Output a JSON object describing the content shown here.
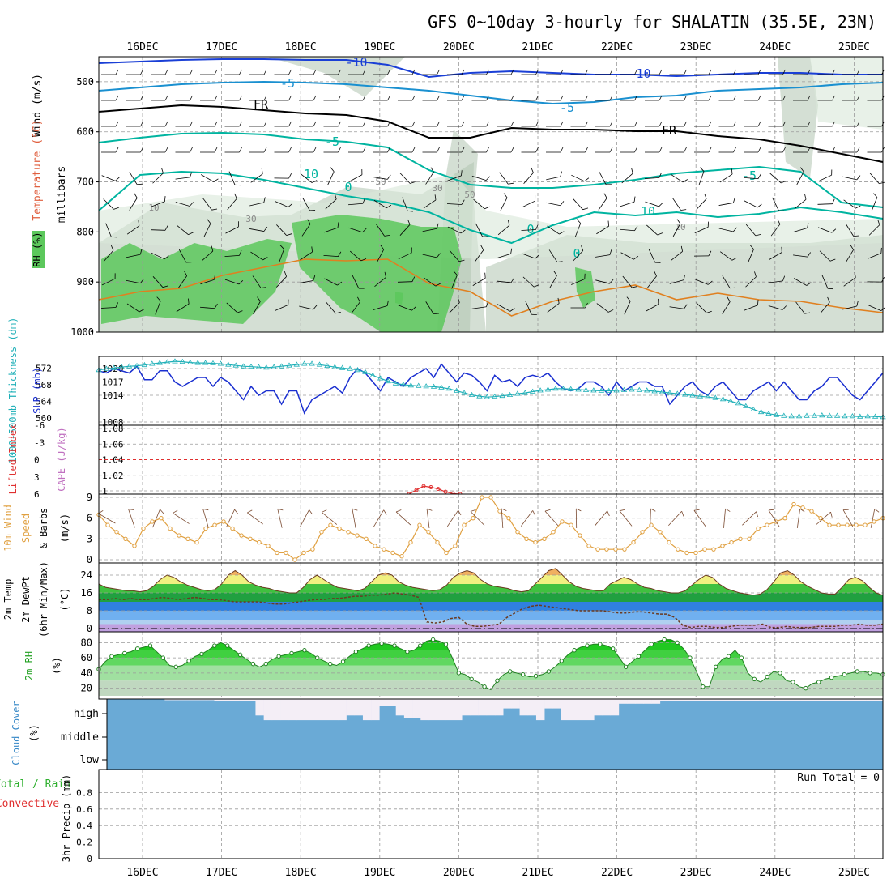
{
  "title": "GFS 0~10day 3-hourly for SHALATIN (35.5E, 23N)",
  "date_labels": [
    "16DEC",
    "17DEC",
    "18DEC",
    "19DEC",
    "20DEC",
    "21DEC",
    "22DEC",
    "23DEC",
    "24DEC",
    "25DEC"
  ],
  "colors": {
    "frame": "#000000",
    "grid": "#9a9a9a",
    "rh_green": "#5cc85c",
    "rh_gray": "#b0c4b0",
    "temp_cyan": "#00b4a0",
    "temp_blue": "#1a3fd6",
    "temp_sky": "#1a90d0",
    "temp_orange": "#e08020",
    "slp_blue": "#1a2fd0",
    "thick_cyan": "#20b0b8",
    "cape_red": "#e03030",
    "wind_orange": "#e0a040",
    "cloud_blue": "#6aaad6",
    "cloud_white": "#f4eef6"
  },
  "chart_data": [
    {
      "name": "upper_air_cross_section",
      "type": "heatmap",
      "ylabel_parts": [
        "Wind",
        "(m/s)",
        "Temperature",
        "(°C)",
        "RH",
        "(%)"
      ],
      "ylabel_unit": "millibars",
      "y_ticks": [
        500,
        600,
        700,
        800,
        900,
        1000
      ],
      "ylim": [
        450,
        1000
      ],
      "contour_labels": [
        "-10",
        "-10",
        "-5",
        "-5",
        "FR",
        "FR",
        "-5",
        "-5",
        "10",
        "10",
        "0",
        "0",
        "0",
        "10",
        "30",
        "30",
        "50",
        "50",
        "10"
      ],
      "freezing_level_mb_daily": [
        550,
        545,
        548,
        556,
        560,
        595,
        590,
        592,
        620,
        640
      ],
      "temp_10c_line_mb_daily": [
        690,
        690,
        700,
        710,
        680,
        760,
        770,
        750,
        730,
        700
      ]
    },
    {
      "name": "slp_thickness",
      "type": "line",
      "ylabel_left": "1000-500mb Thickness (dm)",
      "ylabel_right": "SLP (mb)",
      "left_ticks": [
        560,
        564,
        568,
        572
      ],
      "right_ticks": [
        1008,
        1014,
        1017,
        1020
      ],
      "series": [
        {
          "name": "SLP (mb)",
          "values": [
            1019.5,
            1019,
            1020,
            1019.5,
            1019,
            1020.5,
            1017.5,
            1017.5,
            1019.5,
            1019.5,
            1017,
            1016,
            1017,
            1018,
            1018,
            1016,
            1018,
            1017,
            1015,
            1013,
            1016,
            1014,
            1015,
            1015,
            1012,
            1015,
            1015,
            1010,
            1013,
            1014,
            1015,
            1016,
            1014.5,
            1018,
            1020,
            1019,
            1017,
            1015,
            1018,
            1017,
            1016,
            1018,
            1019,
            1020,
            1018,
            1021,
            1019,
            1017,
            1019,
            1018.5,
            1017,
            1015,
            1018.5,
            1017,
            1017.5,
            1016,
            1018,
            1018.5,
            1018,
            1019,
            1017,
            1015.5,
            1015,
            1015.5,
            1017,
            1017,
            1016,
            1014,
            1017,
            1015,
            1016,
            1017,
            1017,
            1016,
            1016,
            1012,
            1014,
            1016,
            1017,
            1015,
            1014,
            1016,
            1017,
            1015,
            1013,
            1013,
            1015,
            1016,
            1017,
            1015,
            1017,
            1015,
            1013,
            1013,
            1015,
            1016,
            1018,
            1018,
            1016,
            1014,
            1013,
            1015,
            1017,
            1019
          ]
        },
        {
          "name": "Thickness (dm)",
          "values": [
            571.5,
            571.8,
            572,
            572.2,
            572.4,
            572.5,
            572.7,
            573,
            573.2,
            573.4,
            573.6,
            573.5,
            573.3,
            573.2,
            573.2,
            573.1,
            573,
            572.8,
            572.6,
            572.4,
            572.3,
            572.2,
            572.1,
            572.2,
            572.4,
            572.6,
            572.8,
            573,
            573,
            572.8,
            572.5,
            572.2,
            572,
            571.8,
            571.5,
            571,
            570.2,
            569.5,
            568.8,
            568.3,
            568,
            567.8,
            567.7,
            567.6,
            567.5,
            567.3,
            567,
            566.5,
            566,
            565.5,
            565.2,
            565,
            565.1,
            565.3,
            565.5,
            565.8,
            566,
            566.3,
            566.6,
            566.8,
            567,
            567,
            566.9,
            566.8,
            566.7,
            566.6,
            566.5,
            566.5,
            566.6,
            566.7,
            566.8,
            566.7,
            566.6,
            566.4,
            566.2,
            566,
            565.8,
            565.6,
            565.4,
            565.2,
            565,
            564.8,
            564.5,
            564,
            563.5,
            562.8,
            562,
            561.4,
            561,
            560.7,
            560.5,
            560.4,
            560.4,
            560.5,
            560.5,
            560.6,
            560.5,
            560.5,
            560.4,
            560.4,
            560.3,
            560.4,
            560.3,
            560.2
          ]
        }
      ]
    },
    {
      "name": "lifted_index_cape",
      "type": "line",
      "ylabel_left": "Lifted Index",
      "ylabel_right": "CAPE (J/kg)",
      "left_ticks": [
        6,
        3,
        0,
        -3,
        -6
      ],
      "right_ticks": [
        1,
        1.02,
        1.04,
        1.06,
        1.08
      ],
      "reference_line_value": 0,
      "series": [
        {
          "name": "Lifted Index",
          "values": [
            6,
            5.3,
            4.6,
            4.8,
            5.1,
            5.6,
            5.9,
            6
          ]
        },
        {
          "name": "CAPE",
          "values": []
        }
      ]
    },
    {
      "name": "wind_10m",
      "type": "line",
      "ylabel": "10m Wind Speed & Barbs (m/s)",
      "ylim": [
        0,
        9
      ],
      "y_ticks": [
        0,
        3,
        6,
        9
      ],
      "series": [
        {
          "name": "10m Wind Speed (m/s)",
          "values": [
            6.5,
            5,
            4,
            3,
            2,
            4.5,
            5.5,
            6,
            4.5,
            3.5,
            3,
            2.5,
            4.5,
            5,
            5.5,
            4.5,
            3.5,
            3,
            2.5,
            2,
            1,
            1,
            0,
            1,
            1.5,
            4,
            5,
            4.5,
            4,
            3.5,
            3,
            2,
            1.5,
            1,
            0.5,
            2.5,
            5,
            4,
            2.5,
            1,
            2,
            5,
            6,
            9,
            9,
            7,
            6,
            4,
            3,
            2.5,
            3,
            4,
            5.5,
            5,
            3.5,
            2,
            1.5,
            1.5,
            1.5,
            1.5,
            2.5,
            4,
            5,
            4,
            2.5,
            1.5,
            1,
            1,
            1.5,
            1.5,
            2,
            2.5,
            3,
            3,
            4.5,
            5,
            5.5,
            6,
            8,
            7.5,
            7,
            6,
            5,
            5,
            5,
            5,
            5,
            5.5,
            6
          ]
        }
      ]
    },
    {
      "name": "temp_2m",
      "type": "area",
      "ylabel": "2m Temp / 2m DewPt (6hr Min/Max) (°C)",
      "ylim": [
        0,
        28
      ],
      "y_ticks": [
        0,
        8,
        16,
        24
      ],
      "series": [
        {
          "name": "2m Temp",
          "values": [
            20,
            18.5,
            18,
            17.5,
            17,
            17,
            16.5,
            17,
            19,
            22,
            24,
            23,
            21,
            19.5,
            18.5,
            17.5,
            17,
            17.5,
            20,
            24,
            26,
            24,
            21,
            19.5,
            18.5,
            18,
            17,
            16.5,
            16,
            16,
            18.5,
            22,
            24,
            22,
            20,
            18.5,
            18,
            17.5,
            17,
            18,
            21,
            24,
            25,
            24,
            21,
            19.5,
            18.5,
            18,
            17.5,
            17,
            17.5,
            19.5,
            23,
            25,
            26,
            25,
            22,
            20,
            19,
            18.5,
            18,
            17,
            16.5,
            17,
            20,
            23,
            26,
            27,
            24,
            21,
            19,
            18,
            17.5,
            17,
            17,
            20,
            21.5,
            23,
            22,
            20,
            18.5,
            18,
            17,
            16.5,
            16,
            16,
            17,
            19.5,
            22,
            24,
            23,
            20,
            18,
            17,
            16,
            15.5,
            15,
            15.5,
            17.5,
            21,
            25,
            26,
            24,
            21,
            19,
            17.5,
            16,
            15.5,
            15.5,
            18.5,
            22,
            23,
            21.5,
            18.5,
            16,
            15
          ]
        },
        {
          "name": "2m DewPt",
          "values": [
            13,
            13,
            13.5,
            13,
            13.5,
            13,
            13,
            13.5,
            14,
            13.5,
            13,
            13.5,
            14,
            13.5,
            13,
            13,
            12.5,
            12,
            12,
            12,
            12,
            11.5,
            11,
            11,
            11.5,
            12,
            12.5,
            13,
            13,
            13.5,
            13.5,
            14,
            14.5,
            14.5,
            15,
            15,
            15.5,
            16,
            15.5,
            15,
            14,
            3,
            2.5,
            3,
            4.5,
            5,
            2,
            1,
            1,
            1.5,
            2,
            5,
            7,
            9,
            10,
            10.5,
            10,
            9.5,
            9,
            8.5,
            8,
            8,
            8,
            8,
            7.5,
            7,
            7,
            7.5,
            7.5,
            7,
            6.5,
            6.5,
            5,
            1.5,
            0.5,
            1,
            1,
            0.5,
            0.5,
            1,
            1.5,
            1.5,
            1.5,
            2,
            0.5,
            0.5,
            1,
            0.5,
            0.5,
            0.5,
            1,
            1,
            1,
            1.5,
            1.5,
            2,
            1.5,
            1.5,
            2
          ]
        }
      ]
    },
    {
      "name": "rh_2m",
      "type": "area",
      "ylabel": "2m RH (%)",
      "ylim": [
        10,
        90
      ],
      "y_ticks": [
        20,
        40,
        60,
        80
      ],
      "series": [
        {
          "name": "2m RH (%)",
          "values": [
            45,
            55,
            62,
            64,
            66,
            68,
            72,
            74,
            76,
            68,
            60,
            50,
            48,
            50,
            56,
            62,
            65,
            70,
            76,
            80,
            76,
            70,
            64,
            58,
            52,
            48,
            52,
            58,
            62,
            64,
            66,
            68,
            70,
            66,
            60,
            56,
            52,
            50,
            55,
            62,
            68,
            72,
            76,
            78,
            79,
            78,
            76,
            72,
            68,
            70,
            76,
            82,
            84,
            82,
            78,
            60,
            40,
            38,
            32,
            28,
            22,
            18,
            30,
            38,
            42,
            40,
            38,
            35,
            36,
            38,
            42,
            48,
            56,
            64,
            70,
            74,
            76,
            78,
            78,
            76,
            72,
            60,
            48,
            55,
            62,
            70,
            78,
            82,
            84,
            84,
            80,
            72,
            60,
            42,
            22,
            22,
            48,
            58,
            62,
            70,
            60,
            40,
            32,
            28,
            35,
            42,
            40,
            30,
            28,
            22,
            20,
            26,
            28,
            32,
            34,
            36,
            38,
            40,
            42,
            42,
            40,
            40,
            38
          ]
        }
      ]
    },
    {
      "name": "cloud_cover",
      "type": "area",
      "ylabel": "Cloud Cover (%)",
      "levels": [
        "high",
        "middle",
        "low"
      ],
      "series": [
        {
          "name": "High cloud cover (%)",
          "values": [
            100,
            100,
            100,
            100,
            100,
            100,
            100,
            95,
            95,
            95,
            95,
            95,
            95,
            90,
            90,
            90,
            90,
            90,
            30,
            10,
            10,
            10,
            10,
            10,
            10,
            10,
            10,
            10,
            10,
            30,
            30,
            10,
            10,
            70,
            70,
            30,
            20,
            20,
            10,
            10,
            10,
            10,
            10,
            30,
            30,
            30,
            30,
            30,
            60,
            60,
            30,
            30,
            10,
            60,
            60,
            10,
            10,
            10,
            10,
            30,
            30,
            30,
            80,
            80,
            80,
            80,
            80,
            90,
            90,
            90,
            90,
            90,
            90,
            90,
            90,
            90,
            90,
            90,
            90,
            90,
            90,
            90,
            90,
            90,
            90,
            90,
            90,
            90,
            90,
            90,
            90,
            90,
            90,
            90
          ]
        }
      ]
    },
    {
      "name": "precip_3hr",
      "type": "bar",
      "ylabel": "3hr Precip (mm)",
      "legend_total": "Total / Rain",
      "legend_conv": "Convective",
      "run_total": "Run Total = 0",
      "ylim": [
        0,
        1
      ],
      "y_ticks": [
        0,
        0.2,
        0.4,
        0.6,
        0.8
      ],
      "values": []
    }
  ]
}
